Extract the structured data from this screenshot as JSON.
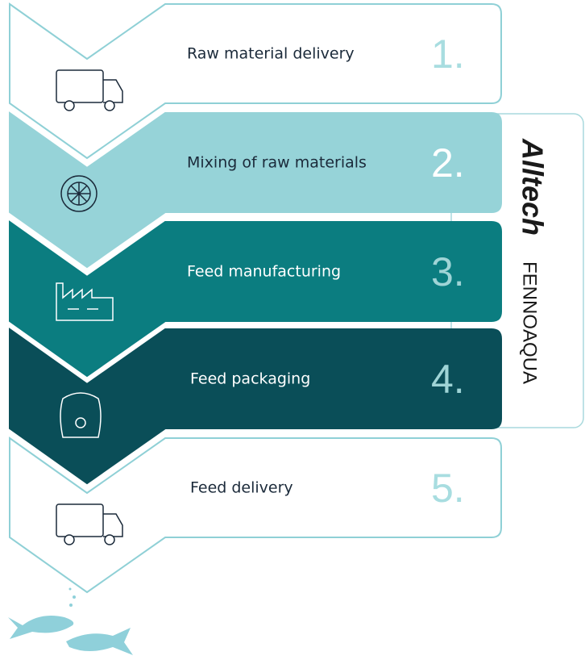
{
  "steps": [
    {
      "label": "Raw material delivery",
      "number": "1."
    },
    {
      "label": "Mixing of raw materials",
      "number": "2."
    },
    {
      "label": "Feed manufacturing",
      "number": "3."
    },
    {
      "label": "Feed packaging",
      "number": "4."
    },
    {
      "label": "Feed delivery",
      "number": "5."
    }
  ],
  "brand": {
    "name": "Alltech",
    "subname": "FENNOAQUA"
  }
}
